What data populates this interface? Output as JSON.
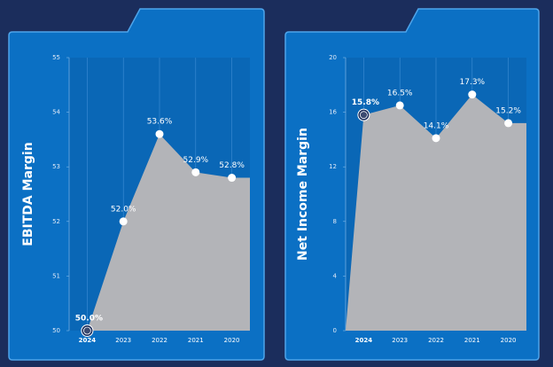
{
  "chart_data": [
    {
      "type": "area",
      "y_label": "EBITDA Margin",
      "categories": [
        "2024",
        "2023",
        "2022",
        "2021",
        "2020"
      ],
      "values": [
        50.0,
        52.0,
        53.6,
        52.9,
        52.8
      ],
      "value_labels": [
        "50.0%",
        "52.0%",
        "53.6%",
        "52.9%",
        "52.8%"
      ],
      "color": "#b3b4b8",
      "ylim": [
        50,
        55
      ],
      "yticks": [
        50,
        51,
        52,
        53,
        54,
        55
      ]
    },
    {
      "type": "area",
      "y_label": "Net Income Margin",
      "categories": [
        "2024",
        "2023",
        "2022",
        "2021",
        "2020"
      ],
      "values": [
        15.8,
        16.5,
        14.1,
        17.3,
        15.2
      ],
      "value_labels": [
        "15.8%",
        "16.5%",
        "14.1%",
        "17.3%",
        "15.2%"
      ],
      "color": "#b3b4b8",
      "ylim": [
        0,
        20
      ],
      "yticks": [
        0,
        4,
        8,
        12,
        16,
        20
      ]
    }
  ]
}
